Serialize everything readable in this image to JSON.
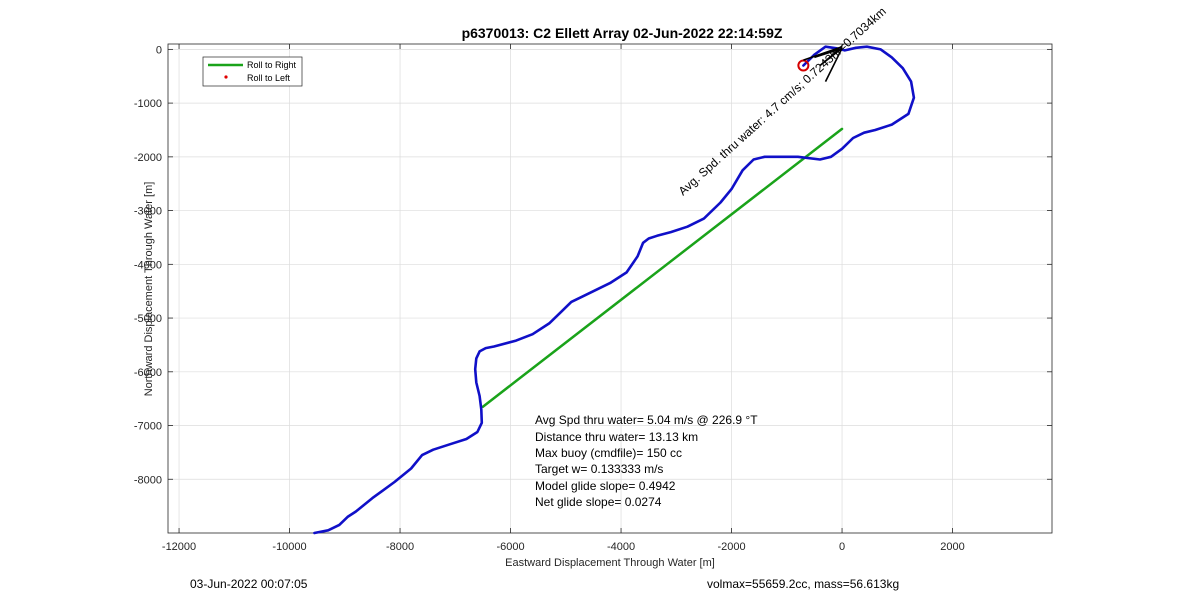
{
  "chart_data": {
    "type": "line",
    "title": "p6370013: C2 Ellett Array 02-Jun-2022 22:14:59Z",
    "xlabel": "Eastward Displacement Through Water [m]",
    "ylabel": "Northward Displacement Through Water [m]",
    "xlim": [
      -12200,
      3800
    ],
    "ylim": [
      -9000,
      100
    ],
    "xticks": [
      -12000,
      -10000,
      -8000,
      -6000,
      -4000,
      -2000,
      0,
      2000
    ],
    "yticks": [
      0,
      -1000,
      -2000,
      -3000,
      -4000,
      -5000,
      -6000,
      -7000,
      -8000
    ],
    "grid": true,
    "legend_position": "top-left",
    "legend": [
      {
        "label": "Roll to Right",
        "color": "#1aa31a",
        "style": "line"
      },
      {
        "label": "Roll to Left",
        "color": "#e00000",
        "style": "dot"
      }
    ],
    "series": [
      {
        "name": "Roll to Right",
        "color": "#1aa31a",
        "x": [
          -6500,
          0
        ],
        "y": [
          -6650,
          -1480
        ]
      },
      {
        "color": "#1010c8",
        "x": [
          -9550,
          -9300,
          -9100,
          -8950,
          -8800,
          -8500,
          -8100,
          -7800,
          -7600,
          -7400,
          -7100,
          -6800,
          -6600,
          -6520,
          -6530,
          -6560,
          -6620,
          -6640,
          -6620,
          -6560,
          -6450,
          -6300,
          -5900,
          -5600,
          -5300,
          -5100,
          -4900,
          -4700,
          -4500,
          -4200,
          -3900,
          -3700,
          -3600,
          -3500,
          -3350,
          -3100,
          -2800,
          -2500,
          -2200,
          -2000,
          -1800,
          -1600,
          -1400,
          -1100,
          -800,
          -400,
          -200,
          0,
          200,
          400,
          600,
          900,
          1200,
          1300,
          1250,
          1100,
          900,
          700,
          450,
          250,
          50,
          -100,
          -300,
          -500,
          -700
        ],
        "y": [
          -9000,
          -8950,
          -8850,
          -8700,
          -8600,
          -8350,
          -8050,
          -7800,
          -7550,
          -7450,
          -7350,
          -7250,
          -7120,
          -6950,
          -6700,
          -6450,
          -6200,
          -5950,
          -5750,
          -5620,
          -5560,
          -5530,
          -5420,
          -5300,
          -5100,
          -4900,
          -4700,
          -4600,
          -4500,
          -4350,
          -4150,
          -3850,
          -3600,
          -3520,
          -3470,
          -3400,
          -3300,
          -3150,
          -2850,
          -2600,
          -2250,
          -2050,
          -2000,
          -2000,
          -2000,
          -2050,
          -2000,
          -1850,
          -1650,
          -1550,
          -1500,
          -1400,
          -1200,
          -900,
          -600,
          -350,
          -150,
          0,
          50,
          30,
          -20,
          20,
          50,
          -100,
          -300
        ]
      }
    ],
    "markers": [
      {
        "label": "start",
        "x": -700,
        "y": -300,
        "color": "#d40000",
        "shape": "open-circle"
      }
    ],
    "annotations": {
      "rotated_text": "Avg. Spd. thru water: 4.7 cm/s; 0.7243hr=0.7034km",
      "stats": [
        "Avg Spd thru water=  5.04 m/s @ 226.9 °T",
        "Distance thru water= 13.13 km",
        "Max buoy (cmdfile)= 150 cc",
        "Target w= 0.133333 m/s",
        "Model glide slope= 0.4942",
        "Net glide slope= 0.0274"
      ]
    }
  },
  "footer": {
    "date": "03-Jun-2022 00:07:05",
    "volmax": "volmax=55659.2cc, mass=56.613kg"
  }
}
